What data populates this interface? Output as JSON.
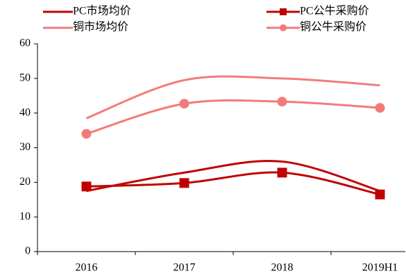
{
  "chart_data": {
    "type": "line",
    "categories": [
      "2016",
      "2017",
      "2018",
      "2019H1"
    ],
    "ylim": [
      0,
      60
    ],
    "yticks": [
      0,
      10,
      20,
      30,
      40,
      50,
      60
    ],
    "legend": "top",
    "series": [
      {
        "name": "PC市场均价",
        "color": "#c00000",
        "marker": "none",
        "values": [
          17.5,
          22.8,
          26,
          17.5
        ]
      },
      {
        "name": "PC公牛采购价",
        "color": "#c00000",
        "marker": "square",
        "values": [
          18.8,
          19.8,
          22.8,
          16.5
        ]
      },
      {
        "name": "铜市场均价",
        "color": "#f47a7a",
        "marker": "none",
        "values": [
          38.5,
          49.5,
          50,
          48
        ]
      },
      {
        "name": "铜公牛采购价",
        "color": "#f47a7a",
        "marker": "circle",
        "values": [
          34,
          42.7,
          43.3,
          41.5
        ]
      }
    ]
  }
}
